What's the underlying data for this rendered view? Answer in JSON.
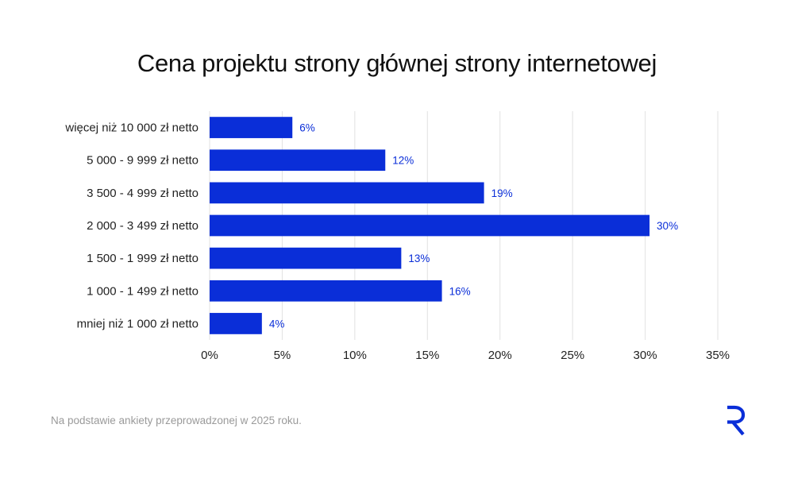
{
  "chart_data": {
    "type": "bar",
    "orientation": "horizontal",
    "title": "Cena projektu strony głównej strony internetowej",
    "categories": [
      "więcej niż 10 000 zł netto",
      "5 000 - 9 999 zł netto",
      "3 500 - 4 999 zł netto",
      "2 000 - 3 499 zł netto",
      "1 500 - 1 999 zł netto",
      "1 000 - 1 499 zł netto",
      "mniej niż 1 000 zł netto"
    ],
    "values": [
      5.7,
      12.1,
      18.9,
      30.3,
      13.2,
      16.0,
      3.6
    ],
    "data_labels": [
      "6%",
      "12%",
      "19%",
      "30%",
      "13%",
      "16%",
      "4%"
    ],
    "xlim": [
      0,
      35
    ],
    "x_ticks": [
      "0%",
      "5%",
      "10%",
      "15%",
      "20%",
      "25%",
      "30%",
      "35%"
    ],
    "grid": "vertical",
    "bar_color": "#0a2ed8",
    "label_color": "#0a2ed8"
  },
  "footnote": "Na podstawie ankiety przeprowadzonej w 2025 roku.",
  "brand": {
    "logo_icon": "r-logo-icon",
    "color": "#0a2ed8"
  }
}
